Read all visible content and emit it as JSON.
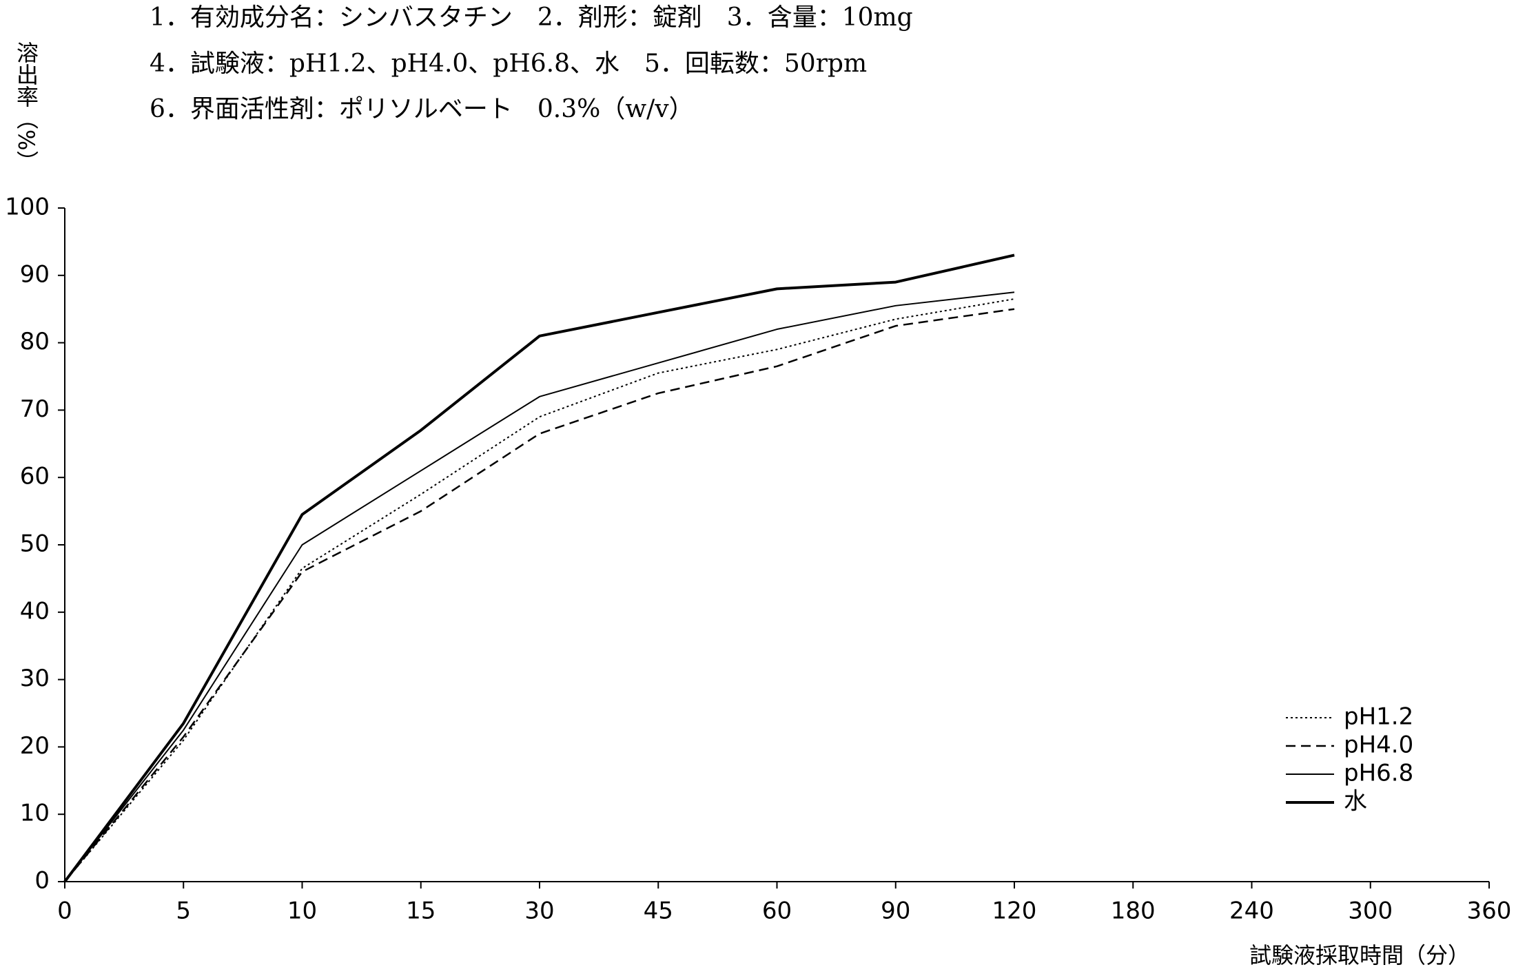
{
  "chart_data": {
    "type": "line",
    "title_lines": [
      "1．有効成分名：シンバスタチン　2．剤形：錠剤　3．含量：10mg",
      "4．試験液：pH1.2、pH4.0、pH6.8、水　5．回転数：50rpm",
      "6．界面活性剤：ポリソルベート　0.3%（w/v）"
    ],
    "ylabel": "溶出率（%）",
    "xlabel": "試験液採取時間（分）",
    "categories": [
      "0",
      "5",
      "10",
      "15",
      "30",
      "45",
      "60",
      "90",
      "120",
      "180",
      "240",
      "300",
      "360"
    ],
    "series": [
      {
        "name": "pH1.2",
        "color": "#000000",
        "dash": "dotted",
        "values": [
          0,
          21,
          46.5,
          57.5,
          69,
          75.5,
          79,
          83.5,
          86.5,
          null,
          null,
          null,
          null
        ]
      },
      {
        "name": "pH4.0",
        "color": "#000000",
        "dash": "dashed",
        "values": [
          0,
          21.5,
          46,
          55,
          66.5,
          72.5,
          76.5,
          82.5,
          85,
          null,
          null,
          null,
          null
        ]
      },
      {
        "name": "pH6.8",
        "color": "#000000",
        "dash": "solid",
        "values": [
          0,
          22.5,
          50,
          61,
          72,
          77,
          82,
          85.5,
          87.5,
          null,
          null,
          null,
          null
        ]
      },
      {
        "name": "水",
        "color": "#000000",
        "dash": "thick",
        "values": [
          0,
          23.5,
          54.5,
          67,
          81,
          84.5,
          88,
          89,
          93,
          null,
          null,
          null,
          null
        ]
      }
    ],
    "ylim": [
      0,
      100
    ],
    "yticks": [
      0,
      10,
      20,
      30,
      40,
      50,
      60,
      70,
      80,
      90,
      100
    ],
    "grid": false,
    "legend": "lower right"
  }
}
